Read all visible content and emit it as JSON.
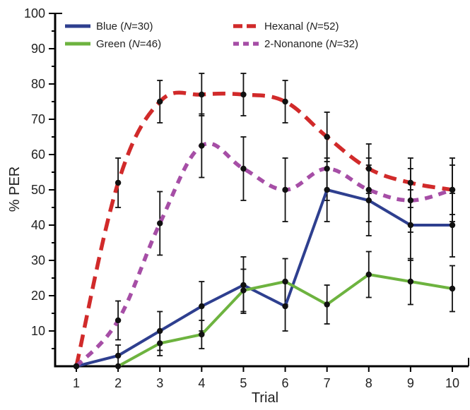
{
  "chart_data": {
    "type": "line",
    "xlabel": "Trial",
    "ylabel": "% PER",
    "x": [
      1,
      2,
      3,
      4,
      5,
      6,
      7,
      8,
      9,
      10
    ],
    "xlim": [
      1,
      10
    ],
    "ylim": [
      0,
      100
    ],
    "yticks": [
      10,
      20,
      30,
      40,
      50,
      60,
      70,
      80,
      90,
      100
    ],
    "grid": false,
    "legend_position": "top",
    "series": [
      {
        "name": "Blue",
        "n_label": "30",
        "color": "#2e3f8f",
        "dashed": false,
        "values": [
          0,
          3,
          10,
          17,
          23,
          17,
          50,
          47,
          40,
          40
        ],
        "errors": [
          0,
          3,
          5.5,
          7,
          8,
          7,
          9,
          10,
          10,
          9
        ]
      },
      {
        "name": "Green",
        "n_label": "46",
        "color": "#6db33f",
        "dashed": false,
        "values": [
          null,
          0,
          6.5,
          9,
          21.5,
          24,
          17.5,
          26,
          24,
          22
        ],
        "errors": [
          null,
          0,
          3.5,
          4,
          6,
          6.5,
          5.5,
          6.5,
          6.5,
          6.5
        ]
      },
      {
        "name": "Hexanal",
        "n_label": "52",
        "color": "#d12a2a",
        "dashed": true,
        "values": [
          0,
          52,
          75,
          77,
          77,
          75,
          65,
          56,
          52,
          50
        ],
        "errors": [
          0,
          7,
          6,
          6,
          6,
          6,
          7,
          7,
          7,
          7
        ]
      },
      {
        "name": "2-Nonanone",
        "n_label": "32",
        "color": "#a64ea6",
        "dashed": true,
        "values": [
          0,
          13,
          40.5,
          62.5,
          56,
          50,
          56,
          50,
          47,
          50
        ],
        "errors": [
          0,
          5.5,
          9,
          9,
          9,
          9,
          9,
          9,
          9,
          9
        ]
      }
    ]
  }
}
